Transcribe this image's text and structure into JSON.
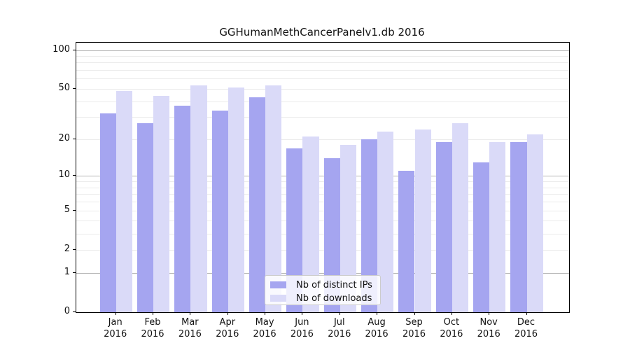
{
  "title": "GGHumanMethCancerPanelv1.db 2016",
  "legend": {
    "items": [
      {
        "label": "Nb of distinct IPs",
        "key": "ips"
      },
      {
        "label": "Nb of downloads",
        "key": "downloads"
      }
    ]
  },
  "colors": {
    "ips": "#a5a5f0",
    "downloads": "#dadaf8",
    "grid_major": "#b4b4b4",
    "grid_minor": "#ebebeb",
    "axis": "#000000",
    "legend_border": "#cccccc"
  },
  "chart_data": {
    "type": "bar",
    "title": "GGHumanMethCancerPanelv1.db 2016",
    "categories": [
      "Jan",
      "Feb",
      "Mar",
      "Apr",
      "May",
      "Jun",
      "Jul",
      "Aug",
      "Sep",
      "Oct",
      "Nov",
      "Dec"
    ],
    "year": "2016",
    "series": [
      {
        "name": "Nb of distinct IPs",
        "key": "ips",
        "values": [
          32,
          27,
          37,
          34,
          43,
          17,
          14,
          20,
          11,
          19,
          13,
          19
        ]
      },
      {
        "name": "Nb of downloads",
        "key": "downloads",
        "values": [
          48,
          44,
          53,
          51,
          53,
          21,
          18,
          23,
          24,
          27,
          19,
          22
        ]
      }
    ],
    "y_scale": "log1p",
    "ylim": [
      0,
      114
    ],
    "y_tick_values": [
      0,
      1,
      2,
      5,
      10,
      20,
      50,
      100
    ],
    "y_grid_major": [
      1,
      10,
      100
    ],
    "y_grid_minor": [
      2,
      3,
      4,
      5,
      6,
      7,
      8,
      9,
      20,
      30,
      40,
      50,
      60,
      70,
      80,
      90
    ],
    "grid": "horizontal",
    "legend_position": "lower-center",
    "xlabel": "",
    "ylabel": ""
  }
}
